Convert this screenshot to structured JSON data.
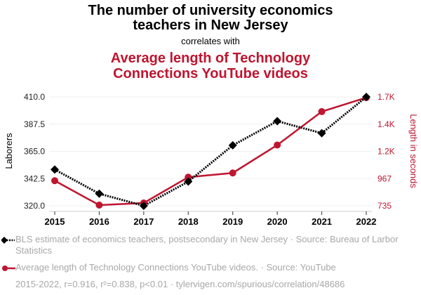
{
  "title": "The number of university economics teachers in New Jersey",
  "title_lines": [
    "The number of university economics",
    "teachers in New Jersey"
  ],
  "correlates": "correlates with",
  "subtitle_lines": [
    "Average length of Technology",
    "Connections YouTube videos"
  ],
  "legend": [
    {
      "text": "BLS estimate of economics teachers, postsecondary in New Jersey · Source: Bureau of Larbor Statistics",
      "color": "#000000",
      "marker": "diamond-dotted"
    },
    {
      "text": "Average length of Technology Connections YouTube videos. · Source: YouTube",
      "color": "#bf1530",
      "marker": "circle-solid"
    }
  ],
  "footer": "2015-2022, r=0.916, r²=0.838, p<0.01 · tylervigen.com/spurious/correlation/48686",
  "chart_data": {
    "type": "line",
    "title": "The number of university economics teachers in New Jersey correlates with Average length of Technology Connections YouTube videos",
    "x": [
      "2015",
      "2016",
      "2017",
      "2018",
      "2019",
      "2020",
      "2021",
      "2022"
    ],
    "series": [
      {
        "name": "BLS estimate of economics teachers, postsecondary in New Jersey",
        "axis": "left",
        "color": "#000000",
        "values": [
          350,
          330,
          320,
          340,
          370,
          390,
          380,
          410
        ]
      },
      {
        "name": "Average length of Technology Connections YouTube videos",
        "axis": "right",
        "color": "#bf1530",
        "values": [
          949,
          741,
          759,
          979,
          1015,
          1253,
          1538,
          1657
        ]
      }
    ],
    "ylabel": "Laborers",
    "ylabel_right": "Length in seconds",
    "ylim": [
      320,
      410
    ],
    "ylim_right": [
      735,
      1663
    ],
    "yticks": [
      "320.0",
      "342.5",
      "365.0",
      "387.5",
      "410.0"
    ],
    "yticks_right": [
      "735",
      "967",
      "1.2K",
      "1.4K",
      "1.7K"
    ],
    "grid": true,
    "legend_position": "bottom"
  }
}
